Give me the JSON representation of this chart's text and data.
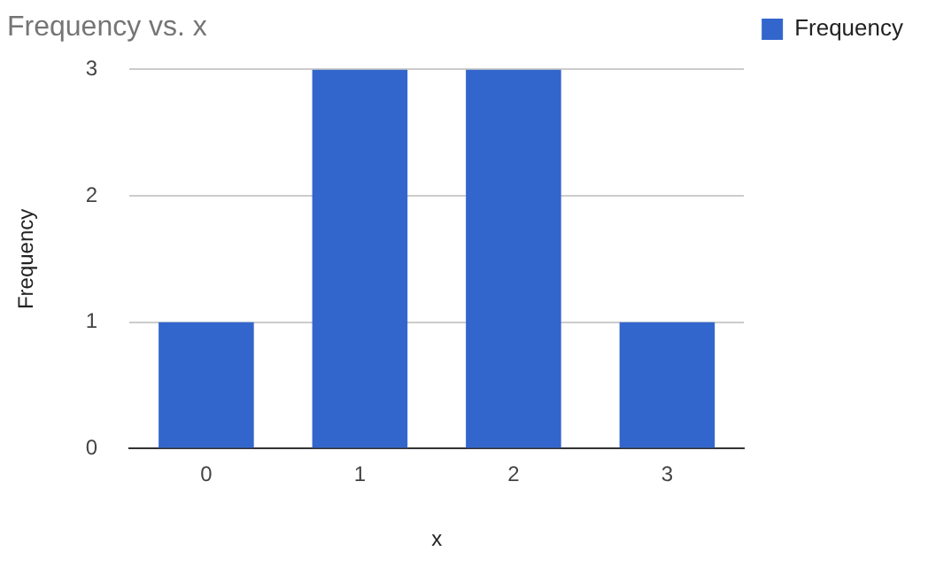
{
  "chart_data": {
    "type": "bar",
    "title": "Frequency vs. x",
    "xlabel": "x",
    "ylabel": "Frequency",
    "categories": [
      "0",
      "1",
      "2",
      "3"
    ],
    "series": [
      {
        "name": "Frequency",
        "color": "#3366cc",
        "values": [
          1,
          3,
          3,
          1
        ]
      }
    ],
    "ylim": [
      0,
      3
    ],
    "yticks": [
      0,
      1,
      2,
      3
    ],
    "grid": "y",
    "legend": "top right"
  }
}
